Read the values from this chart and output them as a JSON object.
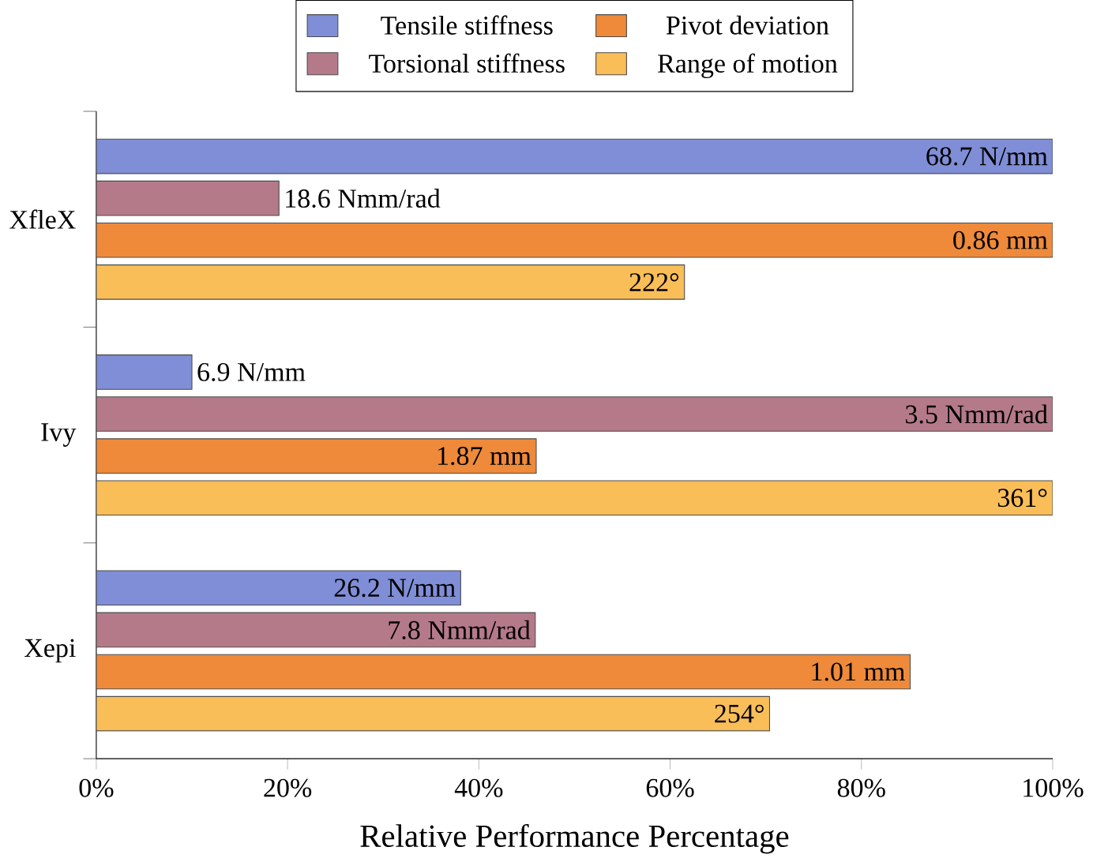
{
  "chart_data": {
    "type": "bar",
    "orientation": "horizontal",
    "xlabel": "Relative Performance Percentage",
    "categories": [
      "XfleX",
      "Ivy",
      "Xepi"
    ],
    "series": [
      {
        "name": "Tensile stiffness",
        "color": "#7f8ed6",
        "values": [
          100,
          10.0,
          38.1
        ]
      },
      {
        "name": "Torsional stiffness",
        "color": "#b57a8a",
        "values": [
          19.1,
          100,
          45.9
        ]
      },
      {
        "name": "Pivot deviation",
        "color": "#ee8a3a",
        "values": [
          100,
          46.0,
          85.1
        ]
      },
      {
        "name": "Range of motion",
        "color": "#f9be58",
        "values": [
          61.5,
          100,
          70.4
        ]
      }
    ],
    "annotations": [
      {
        "text": "68.7 N/mm",
        "x": 100,
        "y": "XfleX"
      },
      {
        "text": "6.9 N/mm",
        "x": 10.0,
        "y": "Ivy"
      },
      {
        "text": "26.2 N/mm",
        "x": 38.1,
        "y": "Xepi"
      },
      {
        "text": "18.6 Nmm/rad",
        "x": 19.1,
        "y": "XfleX"
      },
      {
        "text": "3.5 Nmm/rad",
        "x": 100,
        "y": "Ivy"
      },
      {
        "text": "7.8 Nmm/rad",
        "x": 45.9,
        "y": "Xepi"
      },
      {
        "text": "0.86 mm",
        "x": 100,
        "y": "XfleX"
      },
      {
        "text": "1.87 mm",
        "x": 46.0,
        "y": "Ivy"
      },
      {
        "text": "1.01 mm",
        "x": 85.1,
        "y": "Xepi"
      },
      {
        "text": "222°",
        "x": 61.5,
        "y": "XfleX"
      },
      {
        "text": "361°",
        "x": 100,
        "y": "Ivy"
      },
      {
        "text": "254°",
        "x": 70.4,
        "y": "Xepi"
      }
    ],
    "xlim": [
      0,
      100
    ],
    "xticks": [
      {
        "value": 0,
        "label": "0%"
      },
      {
        "value": 20,
        "label": "20%"
      },
      {
        "value": 40,
        "label": "40%"
      },
      {
        "value": 60,
        "label": "60%"
      },
      {
        "value": 80,
        "label": "80%"
      },
      {
        "value": 100,
        "label": "100%"
      }
    ],
    "legend": "top",
    "grid": false
  }
}
